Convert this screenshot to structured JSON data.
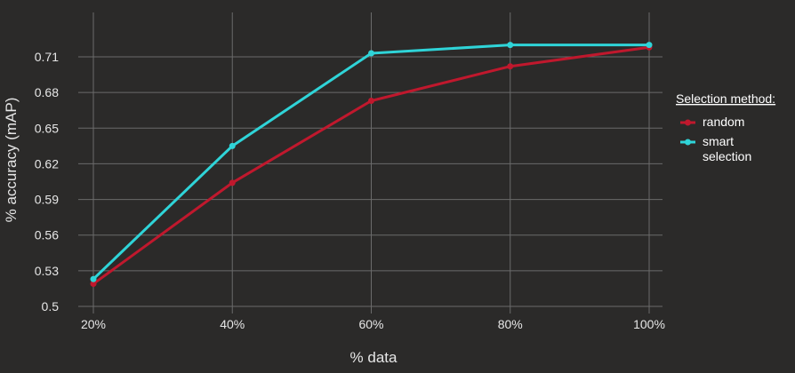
{
  "chart_data": {
    "type": "line",
    "title": "",
    "xlabel": "% data",
    "ylabel": "% accuracy (mAP)",
    "categories": [
      "20%",
      "40%",
      "60%",
      "80%",
      "100%"
    ],
    "y_ticks": [
      "0.5",
      "0.53",
      "0.56",
      "0.59",
      "0.62",
      "0.65",
      "0.68",
      "0.71"
    ],
    "ylim": [
      0.5,
      0.725
    ],
    "grid": true,
    "legend": {
      "title": "Selection method:",
      "placement": "right",
      "entries": [
        "random",
        "smart selection"
      ],
      "entry_lines": [
        [
          "random"
        ],
        [
          "smart",
          "selection"
        ]
      ]
    },
    "series": [
      {
        "name": "random",
        "color": "#c0182d",
        "values": [
          0.519,
          0.604,
          0.673,
          0.702,
          0.718
        ]
      },
      {
        "name": "smart selection",
        "color": "#2fd4d8",
        "values": [
          0.523,
          0.635,
          0.713,
          0.72,
          0.72
        ]
      }
    ],
    "colors": {
      "background": "#2b2a29",
      "grid": "#6b6b6b",
      "text": "#e6e6e6"
    }
  }
}
